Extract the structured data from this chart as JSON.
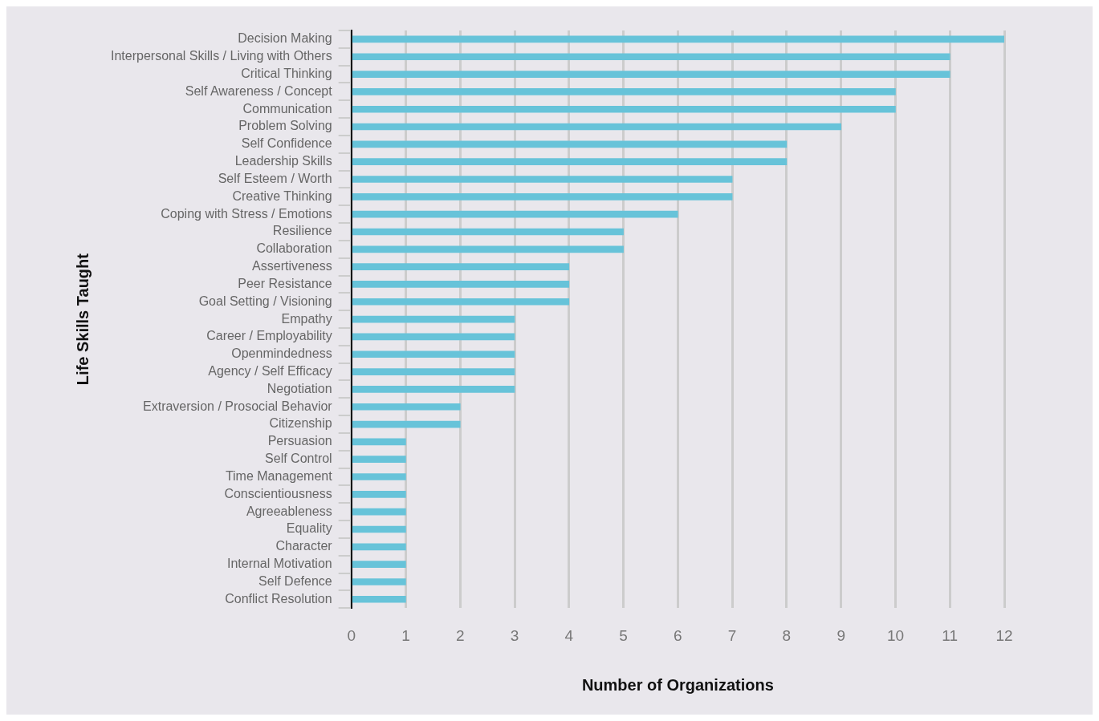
{
  "chart_data": {
    "type": "bar",
    "orientation": "horizontal",
    "xlabel": "Number of Organizations",
    "ylabel": "Life Skills Taught",
    "categories": [
      "Decision Making",
      "Interpersonal Skills / Living with Others",
      "Critical Thinking",
      "Self Awareness / Concept",
      "Communication",
      "Problem Solving",
      "Self Confidence",
      "Leadership Skills",
      "Self Esteem / Worth",
      "Creative Thinking",
      "Coping with Stress / Emotions",
      "Resilience",
      "Collaboration",
      "Assertiveness",
      "Peer Resistance",
      "Goal Setting / Visioning",
      "Empathy",
      "Career / Employability",
      "Openmindedness",
      "Agency / Self Efficacy",
      "Negotiation",
      "Extraversion / Prosocial Behavior",
      "Citizenship",
      "Persuasion",
      "Self Control",
      "Time Management",
      "Conscientiousness",
      "Agreeableness",
      "Equality",
      "Character",
      "Internal Motivation",
      "Self Defence",
      "Conflict Resolution"
    ],
    "values": [
      12,
      11,
      11,
      10,
      10,
      9,
      8,
      8,
      7,
      7,
      6,
      5,
      5,
      4,
      4,
      4,
      3,
      3,
      3,
      3,
      3,
      2,
      2,
      1,
      1,
      1,
      1,
      1,
      1,
      1,
      1,
      1,
      1
    ],
    "color": "#67c3d9",
    "xlim": [
      0,
      12
    ],
    "xticks": [
      0,
      1,
      2,
      3,
      4,
      5,
      6,
      7,
      8,
      9,
      10,
      11,
      12
    ],
    "grid": "x",
    "legend": false
  }
}
